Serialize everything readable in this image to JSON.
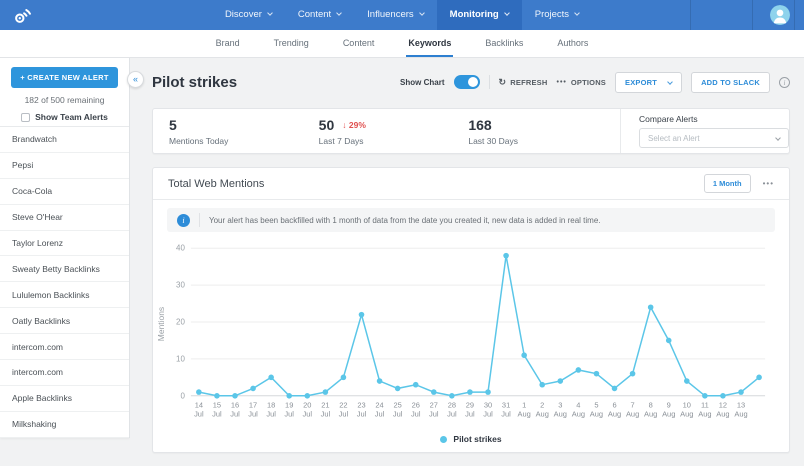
{
  "topnav": {
    "items": [
      {
        "label": "Discover",
        "active": false
      },
      {
        "label": "Content",
        "active": false
      },
      {
        "label": "Influencers",
        "active": false
      },
      {
        "label": "Monitoring",
        "active": true
      },
      {
        "label": "Projects",
        "active": false
      }
    ]
  },
  "tabs": {
    "items": [
      {
        "label": "Brand",
        "active": false
      },
      {
        "label": "Trending",
        "active": false
      },
      {
        "label": "Content",
        "active": false
      },
      {
        "label": "Keywords",
        "active": true
      },
      {
        "label": "Backlinks",
        "active": false
      },
      {
        "label": "Authors",
        "active": false
      }
    ]
  },
  "sidebar": {
    "create_button_label": "CREATE NEW ALERT",
    "remaining": "182 of 500 remaining",
    "team_alerts_label": "Show Team Alerts",
    "alerts": [
      "Brandwatch",
      "Pepsi",
      "Coca-Cola",
      "Steve O'Hear",
      "Taylor Lorenz",
      "Sweaty Betty Backlinks",
      "Lululemon Backlinks",
      "Oatly Backlinks",
      "intercom.com",
      "intercom.com",
      "Apple Backlinks",
      "Milkshaking"
    ]
  },
  "header": {
    "title": "Pilot strikes",
    "show_chart_label": "Show Chart",
    "refresh_label": "REFRESH",
    "options_label": "OPTIONS",
    "export_label": "EXPORT",
    "add_to_slack_label": "ADD TO SLACK"
  },
  "stats": {
    "items": [
      {
        "value": "5",
        "label": "Mentions Today"
      },
      {
        "value": "50",
        "delta": "29%",
        "delta_direction": "down",
        "label": "Last 7 Days"
      },
      {
        "value": "168",
        "label": "Last 30 Days"
      }
    ],
    "compare_label": "Compare Alerts",
    "compare_placeholder": "Select an Alert"
  },
  "chart_card": {
    "title": "Total Web Mentions",
    "range_button_label": "1 Month",
    "info_banner": "Your alert has been backfilled with 1 month of data from the date you created it, new data is added in real time."
  },
  "chart_data": {
    "type": "line",
    "title": "Total Web Mentions",
    "ylabel": "Mentions",
    "ylim": [
      0,
      40
    ],
    "yticks": [
      0,
      10,
      20,
      30,
      40
    ],
    "grid": true,
    "legend_position": "bottom",
    "line_color": "#5bc6e8",
    "x": [
      "14 Jul",
      "15 Jul",
      "16 Jul",
      "17 Jul",
      "18 Jul",
      "19 Jul",
      "20 Jul",
      "21 Jul",
      "22 Jul",
      "23 Jul",
      "24 Jul",
      "25 Jul",
      "26 Jul",
      "27 Jul",
      "28 Jul",
      "29 Jul",
      "30 Jul",
      "31 Jul",
      "1 Aug",
      "2 Aug",
      "3 Aug",
      "4 Aug",
      "5 Aug",
      "6 Aug",
      "7 Aug",
      "8 Aug",
      "9 Aug",
      "10 Aug",
      "11 Aug",
      "12 Aug",
      "13 Aug",
      ""
    ],
    "series": [
      {
        "name": "Pilot strikes",
        "values": [
          1,
          0,
          0,
          2,
          5,
          0,
          0,
          1,
          5,
          22,
          4,
          2,
          3,
          1,
          0,
          1,
          1,
          38,
          11,
          3,
          4,
          7,
          6,
          2,
          6,
          24,
          15,
          4,
          0,
          0,
          1,
          5
        ]
      }
    ]
  },
  "icons": {
    "collapse": "«",
    "refresh": "↻",
    "options_dots": "•••",
    "card_menu": "•••",
    "info": "i",
    "plus": "+",
    "arrow_down": "↓"
  },
  "colors": {
    "nav_bg": "#3d7bcb",
    "nav_active_bg": "#2f6cbe",
    "accent_blue": "#2d8cd8",
    "button_blue": "#2e95dc",
    "line_blue": "#5bc6e8",
    "delta_red": "#e0504f",
    "main_bg": "#f1f2f3"
  }
}
